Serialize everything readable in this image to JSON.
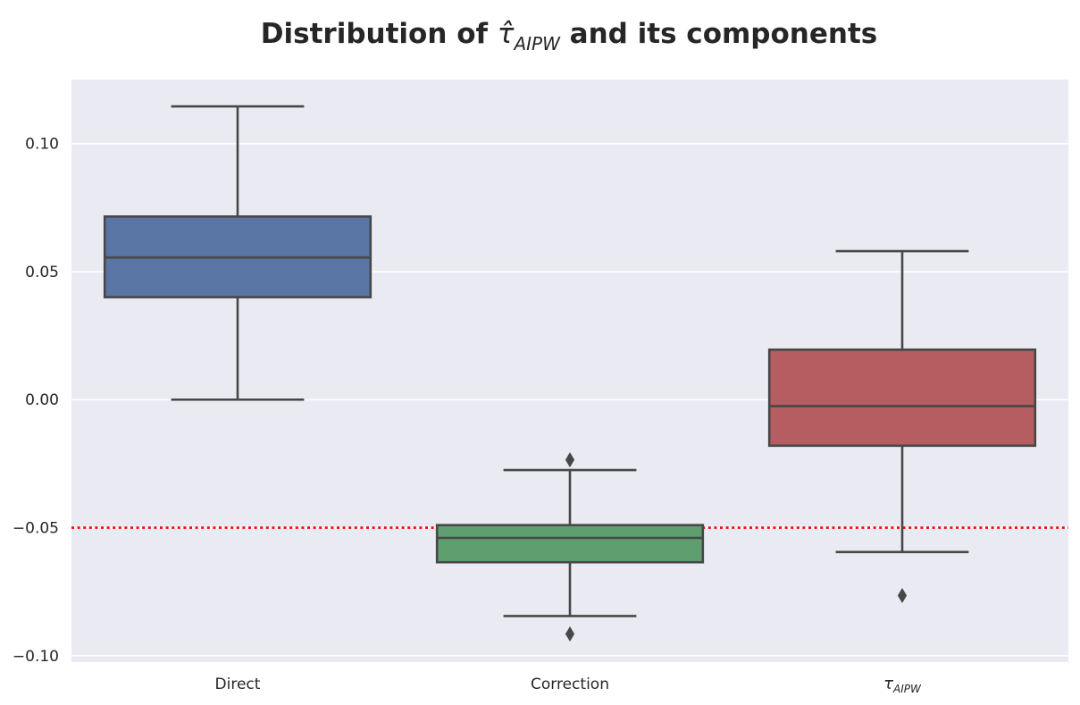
{
  "chart_data": {
    "type": "box",
    "title": {
      "prefix": "Distribution of ",
      "symbol": "τ̂",
      "subscript": "AIPW",
      "suffix": " and its components"
    },
    "xlabel": "",
    "ylabel": "",
    "ylim": [
      -0.1025,
      0.125
    ],
    "yticks": [
      {
        "value": -0.1,
        "label": "−0.10"
      },
      {
        "value": -0.05,
        "label": "−0.05"
      },
      {
        "value": 0.0,
        "label": "0.00"
      },
      {
        "value": 0.05,
        "label": "0.05"
      },
      {
        "value": 0.1,
        "label": "0.10"
      }
    ],
    "grid": true,
    "reference_line": {
      "value": -0.05,
      "color": "#ff0000",
      "style": "dotted"
    },
    "categories": [
      {
        "label": "Direct",
        "symbol": "",
        "subscript": ""
      },
      {
        "label": "Correction",
        "symbol": "",
        "subscript": ""
      },
      {
        "label": "",
        "symbol": "τ",
        "subscript": "AIPW"
      }
    ],
    "boxes": [
      {
        "whisker_low": 0.0,
        "q1": 0.04,
        "median": 0.0555,
        "q3": 0.0715,
        "whisker_high": 0.1145,
        "outliers": [],
        "color": "#5875a4"
      },
      {
        "whisker_low": -0.0845,
        "q1": -0.0635,
        "median": -0.054,
        "q3": -0.049,
        "whisker_high": -0.0275,
        "outliers": [
          -0.0235,
          -0.0915
        ],
        "color": "#5f9e6e"
      },
      {
        "whisker_low": -0.0595,
        "q1": -0.018,
        "median": -0.0025,
        "q3": 0.0195,
        "whisker_high": 0.058,
        "outliers": [
          -0.0765
        ],
        "color": "#b55d60"
      }
    ],
    "colors": {
      "plot_background": "#eaeaf2",
      "grid": "#ffffff",
      "box_edge": "#474747",
      "text": "#262626"
    }
  }
}
